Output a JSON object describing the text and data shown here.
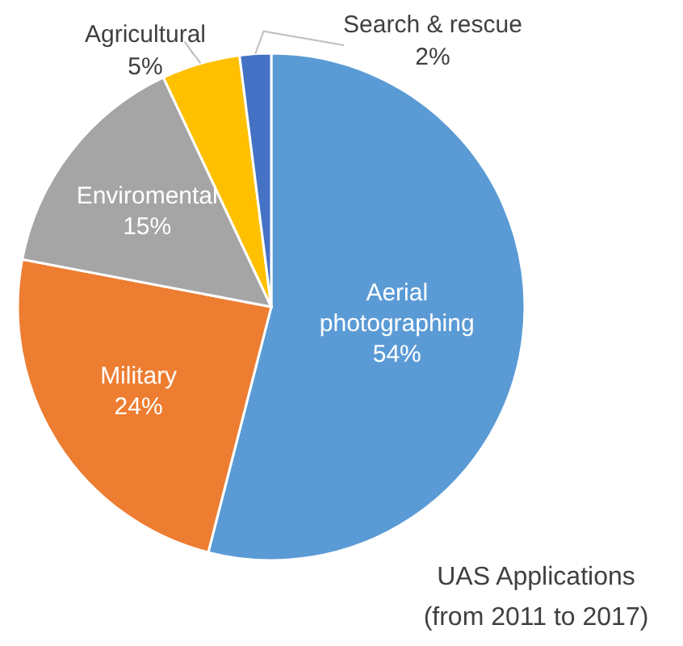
{
  "chart_data": {
    "type": "pie",
    "title": "UAS Applications",
    "subtitle": "(from 2011 to 2017)",
    "categories": [
      "Aerial photographing",
      "Military",
      "Enviromental",
      "Agricultural",
      "Search & rescue"
    ],
    "values": [
      54,
      24,
      15,
      5,
      2
    ],
    "value_labels": [
      "54%",
      "24%",
      "15%",
      "5%",
      "2%"
    ],
    "colors": [
      "#5b9bd5",
      "#ed7d31",
      "#a5a5a5",
      "#ffc000",
      "#4472c4"
    ],
    "legend": false
  }
}
